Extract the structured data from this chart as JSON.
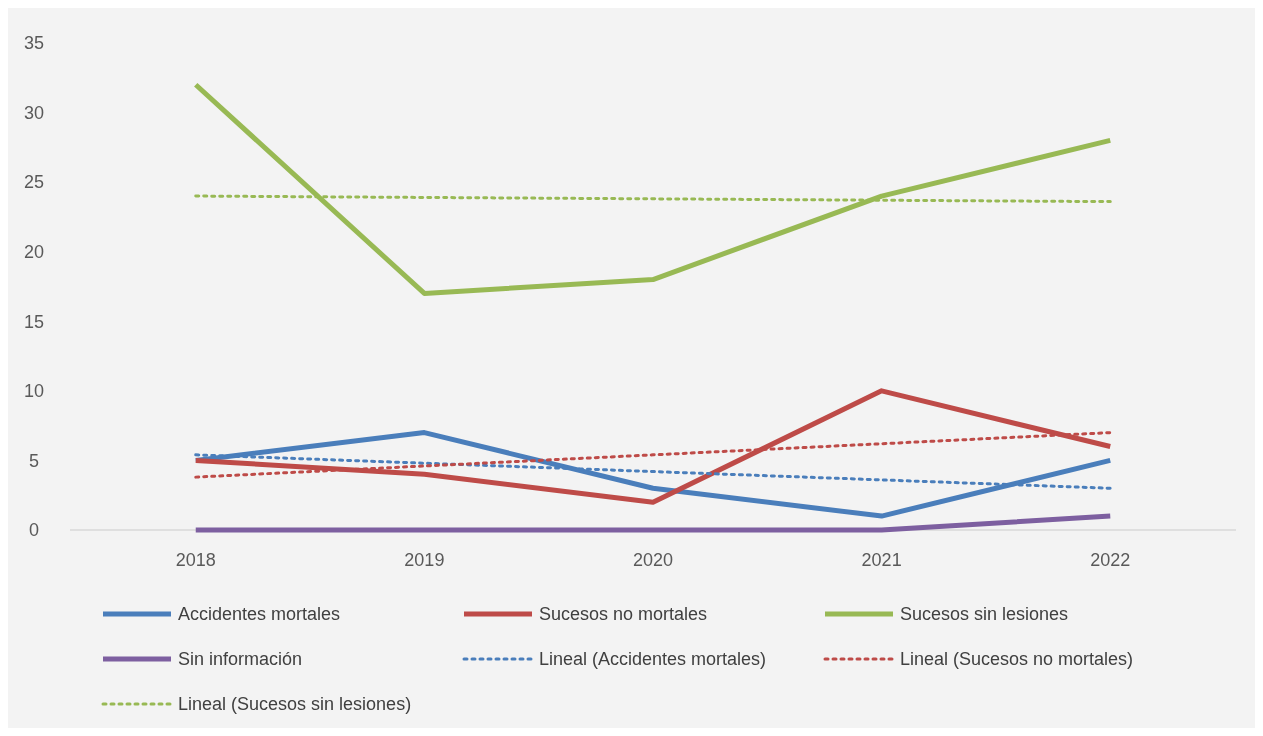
{
  "chart_data": {
    "type": "line",
    "categories": [
      "2018",
      "2019",
      "2020",
      "2021",
      "2022"
    ],
    "ylim": [
      0,
      35
    ],
    "yticks": [
      0,
      5,
      10,
      15,
      20,
      25,
      30,
      35
    ],
    "legend": "bottom",
    "series": [
      {
        "name": "Accidentes mortales",
        "color": "#4a7ebb",
        "values": [
          5,
          7,
          3,
          1,
          5
        ]
      },
      {
        "name": "Sucesos no mortales",
        "color": "#be4b48",
        "values": [
          5,
          4,
          2,
          10,
          6
        ]
      },
      {
        "name": "Sucesos sin lesiones",
        "color": "#98b954",
        "values": [
          32,
          17,
          18,
          24,
          28
        ]
      },
      {
        "name": "Sin información",
        "color": "#7d5fa0",
        "values": [
          0,
          0,
          0,
          0,
          1
        ]
      },
      {
        "name": "Lineal (Accidentes mortales)",
        "color": "#4a7ebb",
        "line_style": "dotted",
        "values": [
          5.4,
          4.8,
          4.2,
          3.6,
          3.0
        ]
      },
      {
        "name": "Lineal (Sucesos no mortales)",
        "color": "#be4b48",
        "line_style": "dotted",
        "values": [
          3.8,
          4.6,
          5.4,
          6.2,
          7.0
        ]
      },
      {
        "name": "Lineal (Sucesos sin lesiones)",
        "color": "#98b954",
        "line_style": "dotted",
        "values": [
          24.0,
          23.9,
          23.8,
          23.7,
          23.6
        ]
      }
    ]
  }
}
